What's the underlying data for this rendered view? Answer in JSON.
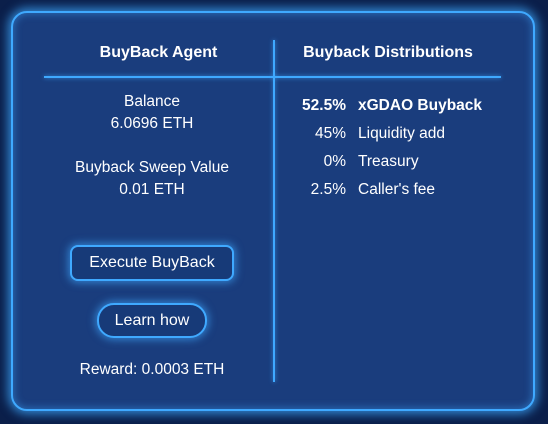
{
  "agent": {
    "title": "BuyBack Agent",
    "balance_label": "Balance",
    "balance_value": "6.0696 ETH",
    "sweep_label": "Buyback Sweep Value",
    "sweep_value": "0.01 ETH",
    "execute_label": "Execute BuyBack",
    "learn_label": "Learn how",
    "reward_text": "Reward: 0.0003 ETH"
  },
  "distributions": {
    "title": "Buyback Distributions",
    "items": [
      {
        "percent": "52.5%",
        "label": "xGDAO Buyback",
        "emphasis": true
      },
      {
        "percent": "45%",
        "label": "Liquidity add",
        "emphasis": false
      },
      {
        "percent": "0%",
        "label": "Treasury",
        "emphasis": false
      },
      {
        "percent": "2.5%",
        "label": "Caller's fee",
        "emphasis": false
      }
    ]
  },
  "colors": {
    "background": "#0b1f4a",
    "panel": "#1a3d7d",
    "accent": "#3fa9ff",
    "text": "#ffffff"
  }
}
